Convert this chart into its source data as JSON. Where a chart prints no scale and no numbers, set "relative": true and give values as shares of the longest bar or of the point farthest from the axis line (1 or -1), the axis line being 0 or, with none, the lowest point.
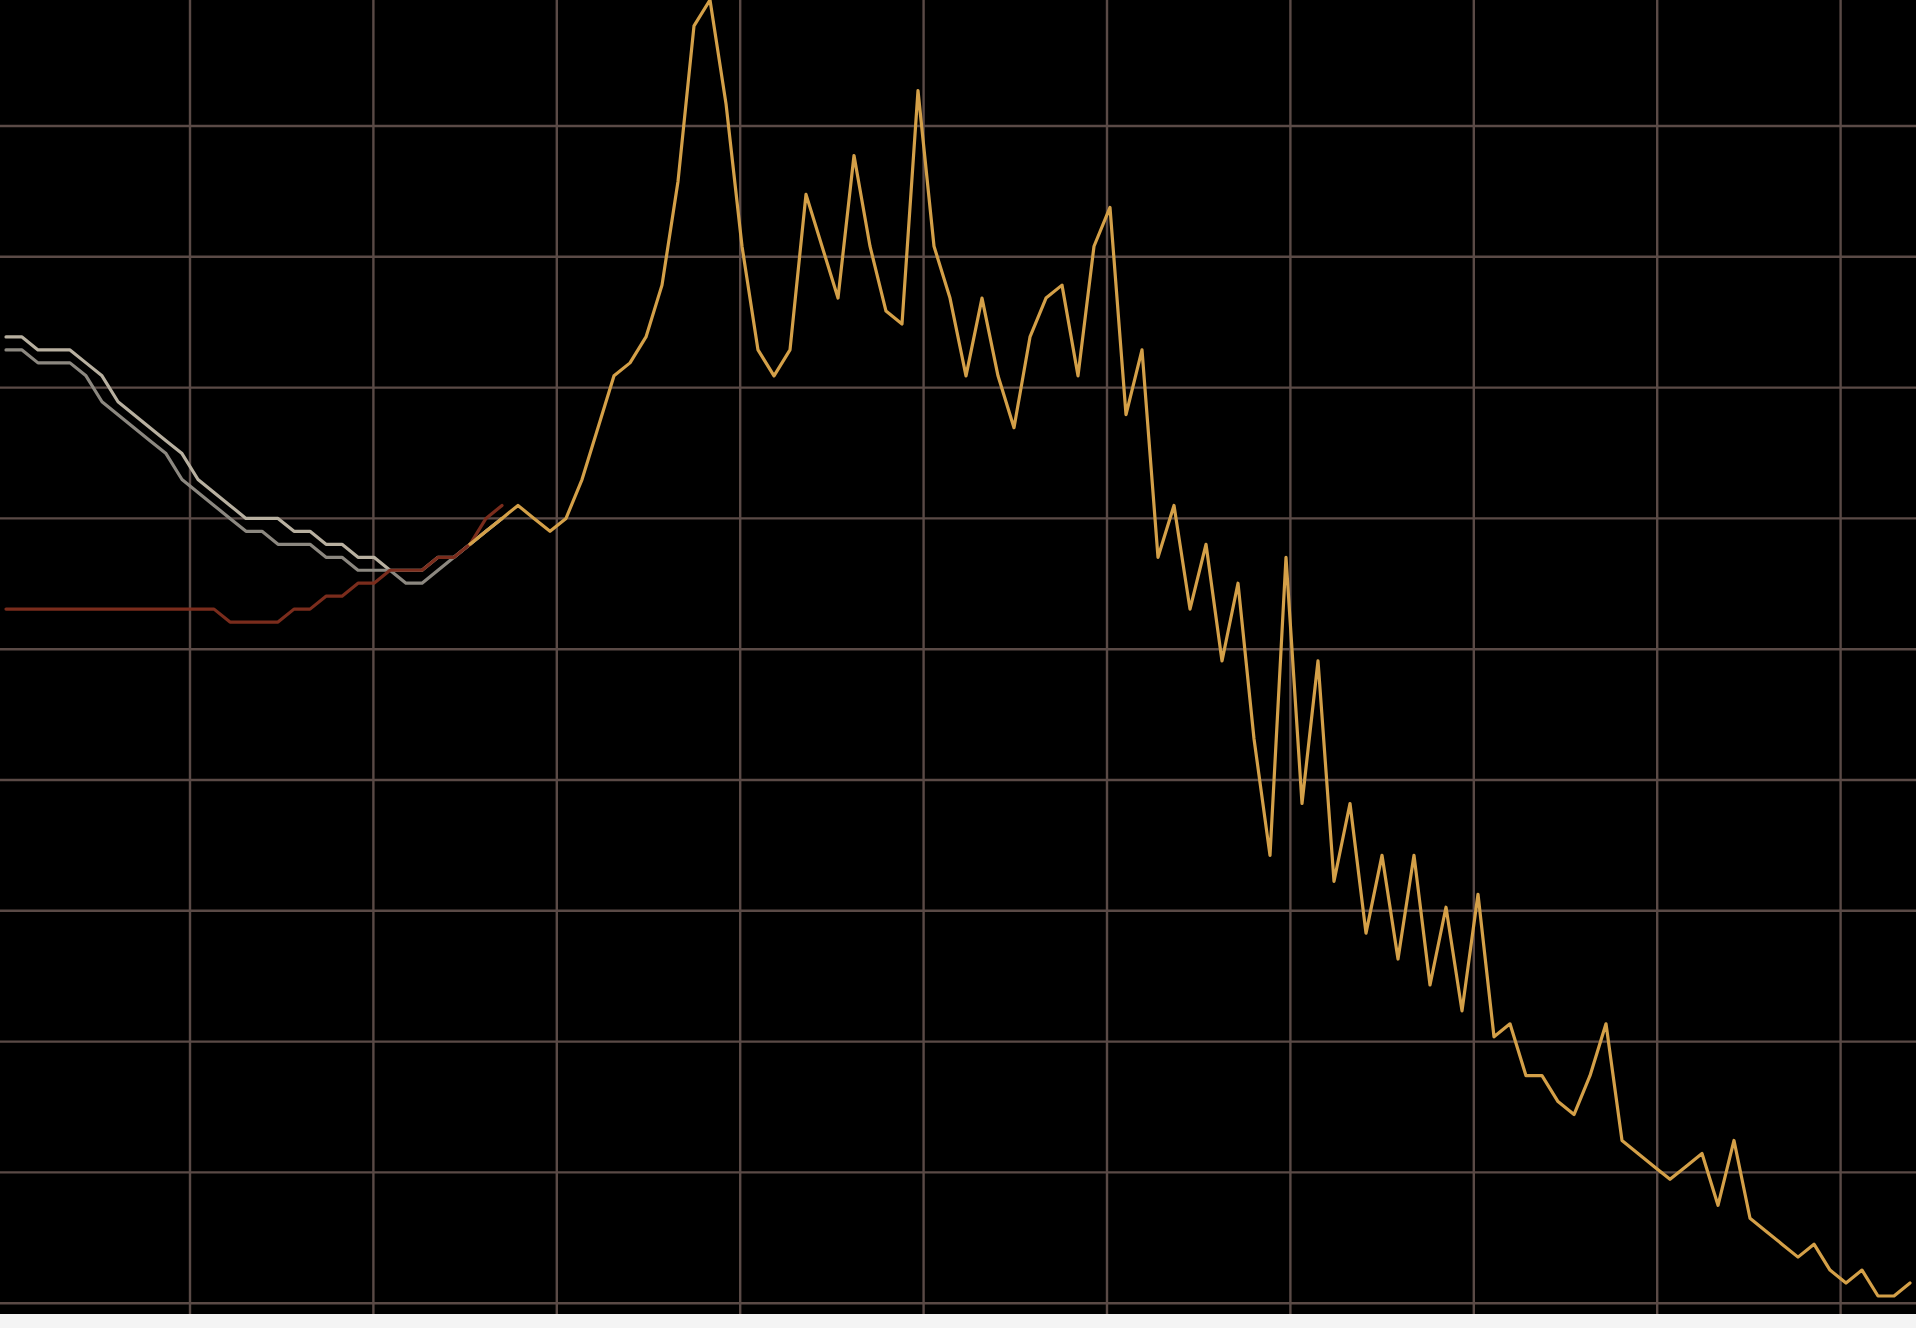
{
  "chart_data": {
    "type": "line",
    "relative": true,
    "grid": true,
    "line_style": "solid",
    "categories": [
      null,
      null,
      null,
      null,
      null,
      null,
      null,
      null,
      null,
      null,
      null,
      null,
      null,
      null,
      null,
      null,
      null,
      null,
      null,
      null,
      null,
      null,
      null,
      null,
      null,
      null,
      null,
      null,
      null,
      null,
      null,
      null,
      null,
      null,
      null,
      null,
      null,
      null,
      null,
      null,
      null,
      null,
      null,
      null,
      null,
      null,
      null,
      null,
      null,
      null,
      null,
      null,
      null,
      null,
      null,
      null,
      null,
      null,
      null,
      null,
      null,
      null,
      null,
      null,
      null,
      null,
      null,
      null,
      null,
      null,
      null,
      null,
      null,
      null,
      null,
      null,
      null,
      null,
      null,
      null,
      null,
      null,
      null,
      null,
      null,
      null,
      null,
      null,
      null,
      null,
      null,
      null,
      null,
      null,
      null,
      null,
      null,
      null,
      null,
      null,
      null,
      null,
      null,
      null,
      null,
      null,
      null,
      null,
      null,
      null,
      null,
      null,
      null,
      null,
      null,
      null,
      null,
      null,
      null,
      null
    ],
    "series": [
      {
        "color": "#b8b0a0",
        "values": [
          0.74,
          0.74,
          0.73,
          0.73,
          0.73,
          0.72,
          0.71,
          0.69,
          0.68,
          0.67,
          0.66,
          0.65,
          0.63,
          0.62,
          0.61,
          0.6,
          0.6,
          0.6,
          0.59,
          0.59,
          0.58,
          0.58,
          0.57,
          0.57,
          0.56,
          0.56,
          0.56,
          0.57,
          0.57,
          0.58,
          0.59,
          0.6,
          null,
          null,
          null,
          null,
          null,
          null,
          null,
          null,
          null,
          null,
          null,
          null,
          null,
          null,
          null,
          null,
          null,
          null,
          null,
          null,
          null,
          null,
          null,
          null,
          null,
          null,
          null,
          null,
          null,
          null,
          null,
          null,
          null,
          null,
          null,
          null,
          null,
          null,
          null,
          null,
          null,
          null,
          null,
          null,
          null,
          null,
          null,
          null,
          null,
          null,
          null,
          null,
          null,
          null,
          null,
          null,
          null,
          null,
          null,
          null,
          null,
          null,
          null,
          null,
          null,
          null,
          null,
          null,
          null,
          null,
          null,
          null,
          null,
          null,
          null,
          null,
          null,
          null,
          null,
          null,
          null,
          null,
          null,
          null,
          null,
          null,
          null,
          null
        ]
      },
      {
        "color": "#8c8880",
        "values": [
          0.73,
          0.73,
          0.72,
          0.72,
          0.72,
          0.71,
          0.69,
          0.68,
          0.67,
          0.66,
          0.65,
          0.63,
          0.62,
          0.61,
          0.6,
          0.59,
          0.59,
          0.58,
          0.58,
          0.58,
          0.57,
          0.57,
          0.56,
          0.56,
          0.56,
          0.55,
          0.55,
          0.56,
          0.57,
          0.58,
          0.59,
          0.6,
          null,
          null,
          null,
          null,
          null,
          null,
          null,
          null,
          null,
          null,
          null,
          null,
          null,
          null,
          null,
          null,
          null,
          null,
          null,
          null,
          null,
          null,
          null,
          null,
          null,
          null,
          null,
          null,
          null,
          null,
          null,
          null,
          null,
          null,
          null,
          null,
          null,
          null,
          null,
          null,
          null,
          null,
          null,
          null,
          null,
          null,
          null,
          null,
          null,
          null,
          null,
          null,
          null,
          null,
          null,
          null,
          null,
          null,
          null,
          null,
          null,
          null,
          null,
          null,
          null,
          null,
          null,
          null,
          null,
          null,
          null,
          null,
          null,
          null,
          null,
          null,
          null,
          null,
          null,
          null,
          null,
          null,
          null,
          null,
          null,
          null,
          null,
          null
        ]
      },
      {
        "color": "#7a2c1c",
        "values": [
          0.53,
          0.53,
          0.53,
          0.53,
          0.53,
          0.53,
          0.53,
          0.53,
          0.53,
          0.53,
          0.53,
          0.53,
          0.53,
          0.53,
          0.52,
          0.52,
          0.52,
          0.52,
          0.53,
          0.53,
          0.54,
          0.54,
          0.55,
          0.55,
          0.56,
          0.56,
          0.56,
          0.57,
          0.57,
          0.58,
          0.6,
          0.61,
          null,
          null,
          null,
          null,
          null,
          null,
          null,
          null,
          null,
          null,
          null,
          null,
          null,
          null,
          null,
          null,
          null,
          null,
          null,
          null,
          null,
          null,
          null,
          null,
          null,
          null,
          null,
          null,
          null,
          null,
          null,
          null,
          null,
          null,
          null,
          null,
          null,
          null,
          null,
          null,
          null,
          null,
          null,
          null,
          null,
          null,
          null,
          null,
          null,
          null,
          null,
          null,
          null,
          null,
          null,
          null,
          null,
          null,
          null,
          null,
          null,
          null,
          null,
          null,
          null,
          null,
          null,
          null,
          null,
          null,
          null,
          null,
          null,
          null,
          null,
          null,
          null,
          null,
          null,
          null,
          null,
          null,
          null,
          null,
          null,
          null,
          null,
          null
        ]
      },
      {
        "color": "#d4a048",
        "values": [
          null,
          null,
          null,
          null,
          null,
          null,
          null,
          null,
          null,
          null,
          null,
          null,
          null,
          null,
          null,
          null,
          null,
          null,
          null,
          null,
          null,
          null,
          null,
          null,
          null,
          null,
          null,
          null,
          null,
          0.58,
          0.59,
          0.6,
          0.61,
          0.6,
          0.59,
          0.6,
          0.63,
          0.67,
          0.71,
          0.72,
          0.74,
          0.78,
          0.86,
          0.98,
          1,
          0.92,
          0.81,
          0.73,
          0.71,
          0.73,
          0.85,
          0.81,
          0.77,
          0.88,
          0.81,
          0.76,
          0.75,
          0.93,
          0.81,
          0.77,
          0.71,
          0.77,
          0.71,
          0.67,
          0.74,
          0.77,
          0.78,
          0.71,
          0.81,
          0.84,
          0.68,
          0.73,
          0.57,
          0.61,
          0.53,
          0.58,
          0.49,
          0.55,
          0.43,
          0.34,
          0.57,
          0.38,
          0.49,
          0.32,
          0.38,
          0.28,
          0.34,
          0.26,
          0.34,
          0.24,
          0.3,
          0.22,
          0.31,
          0.2,
          0.21,
          0.17,
          0.17,
          0.15,
          0.14,
          0.17,
          0.21,
          0.12,
          0.11,
          0.1,
          0.09,
          0.1,
          0.11,
          0.07,
          0.12,
          0.06,
          0.05,
          0.04,
          0.03,
          0.04,
          0.02,
          0.01,
          0.02,
          0,
          0,
          0.01
        ]
      }
    ]
  }
}
